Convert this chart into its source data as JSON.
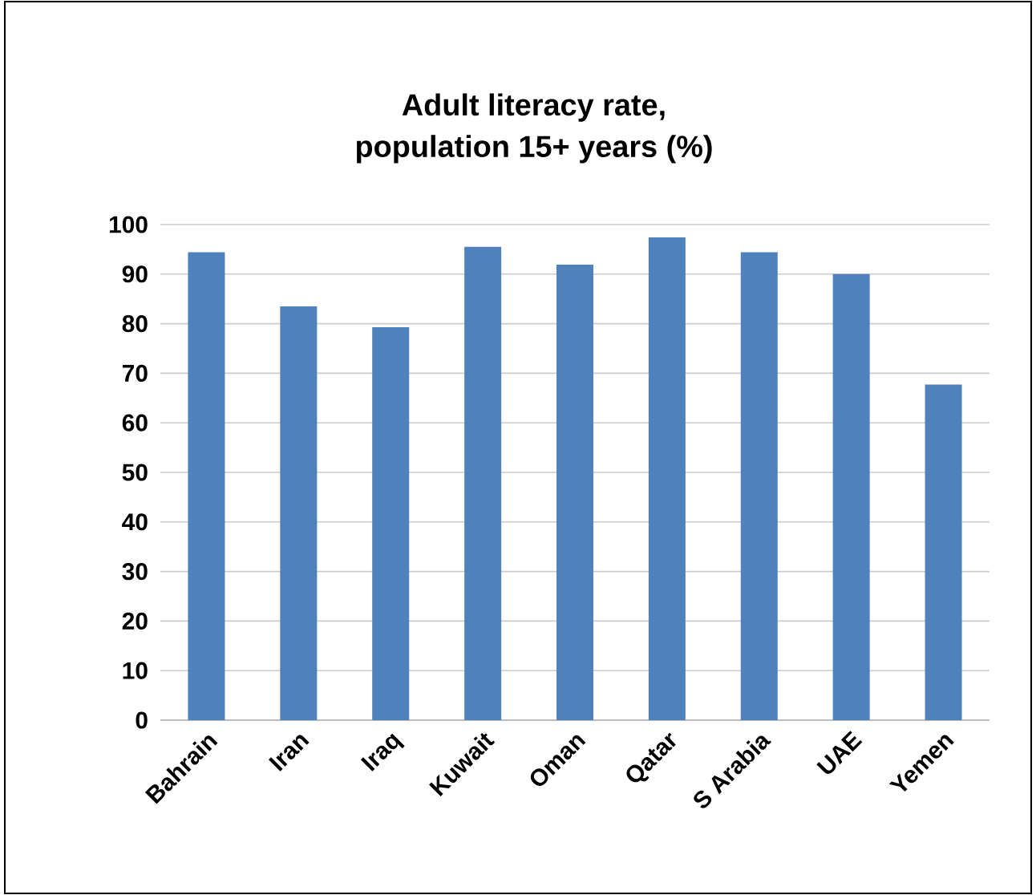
{
  "chart_data": {
    "type": "bar",
    "title": "Adult literacy rate,\npopulation 15+ years (%)",
    "categories": [
      "Bahrain",
      "Iran",
      "Iraq",
      "Kuwait",
      "Oman",
      "Qatar",
      "S Arabia",
      "UAE",
      "Yemen"
    ],
    "values": [
      94.4,
      83.5,
      79.3,
      95.5,
      91.9,
      97.4,
      94.4,
      90.0,
      67.7
    ],
    "color": "#4f81bd",
    "ylim": [
      0,
      100
    ],
    "yticks": [
      0,
      10,
      20,
      30,
      40,
      50,
      60,
      70,
      80,
      90,
      100
    ],
    "grid": "y"
  }
}
